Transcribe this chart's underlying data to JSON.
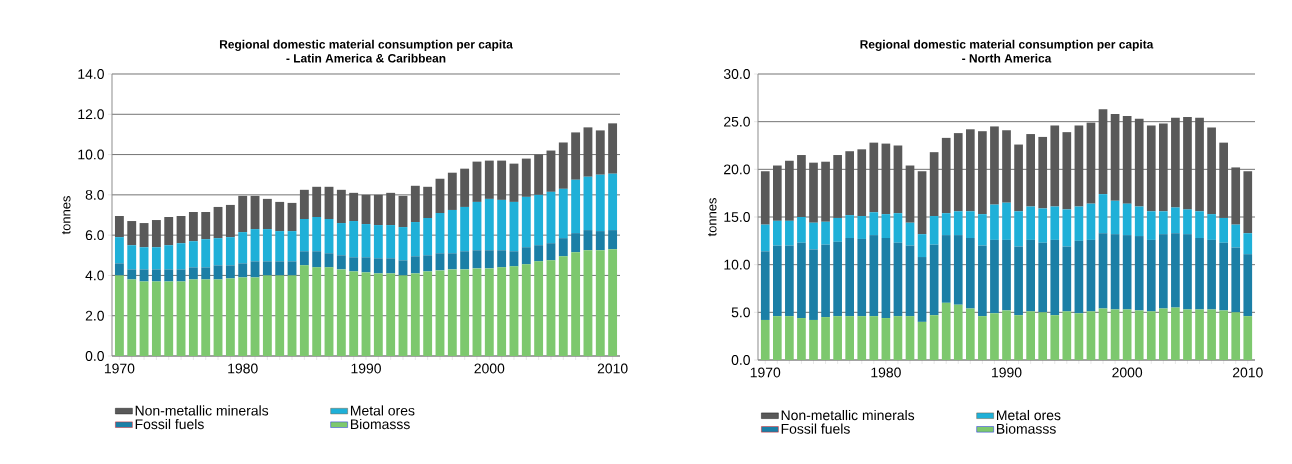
{
  "chart_data": [
    {
      "type": "bar",
      "stacked": true,
      "title": "Regional domestic material consumption per capita",
      "subtitle": "- Latin America & Caribbean",
      "ylabel": "tonnes",
      "x": [
        1970,
        1971,
        1972,
        1973,
        1974,
        1975,
        1976,
        1977,
        1978,
        1979,
        1980,
        1981,
        1982,
        1983,
        1984,
        1985,
        1986,
        1987,
        1988,
        1989,
        1990,
        1991,
        1992,
        1993,
        1994,
        1995,
        1996,
        1997,
        1998,
        1999,
        2000,
        2001,
        2002,
        2003,
        2004,
        2005,
        2006,
        2007,
        2008,
        2009,
        2010
      ],
      "xlim": [
        1969.4,
        2010.6
      ],
      "xticks": [
        1970,
        1980,
        1990,
        2000,
        2010
      ],
      "ylim": [
        0,
        14
      ],
      "yticks": [
        {
          "value": 0,
          "label": "0.0"
        },
        {
          "value": 2,
          "label": "2.0"
        },
        {
          "value": 4,
          "label": "4.0"
        },
        {
          "value": 6,
          "label": "6.0"
        },
        {
          "value": 8,
          "label": "8.0"
        },
        {
          "value": 10,
          "label": "10.0"
        },
        {
          "value": 12,
          "label": "12.0"
        },
        {
          "value": 14,
          "label": "14.0"
        }
      ],
      "grid": "y",
      "legend": "bottom",
      "series": [
        {
          "name": "Biomasss",
          "color": "#7dc86e",
          "values": [
            4.0,
            3.8,
            3.7,
            3.7,
            3.7,
            3.7,
            3.8,
            3.8,
            3.8,
            3.85,
            3.9,
            3.9,
            4.0,
            4.0,
            4.0,
            4.5,
            4.4,
            4.4,
            4.3,
            4.2,
            4.15,
            4.1,
            4.1,
            4.0,
            4.1,
            4.2,
            4.25,
            4.3,
            4.3,
            4.35,
            4.35,
            4.4,
            4.45,
            4.55,
            4.7,
            4.75,
            4.95,
            5.15,
            5.25,
            5.25,
            5.3
          ]
        },
        {
          "name": "Fossil fuels",
          "color": "#1b7fa6",
          "values": [
            0.6,
            0.5,
            0.6,
            0.6,
            0.6,
            0.6,
            0.6,
            0.6,
            0.7,
            0.65,
            0.7,
            0.8,
            0.7,
            0.7,
            0.7,
            0.7,
            0.8,
            0.7,
            0.7,
            0.7,
            0.75,
            0.75,
            0.75,
            0.75,
            0.85,
            0.8,
            0.85,
            0.8,
            0.9,
            0.9,
            0.9,
            0.85,
            0.75,
            0.85,
            0.8,
            0.85,
            0.9,
            0.95,
            1.0,
            0.95,
            0.95
          ]
        },
        {
          "name": "Metal ores",
          "color": "#1fb0d8",
          "values": [
            1.3,
            1.2,
            1.1,
            1.1,
            1.2,
            1.3,
            1.3,
            1.4,
            1.35,
            1.4,
            1.55,
            1.6,
            1.6,
            1.5,
            1.5,
            1.6,
            1.7,
            1.7,
            1.6,
            1.8,
            1.65,
            1.65,
            1.65,
            1.65,
            1.7,
            1.85,
            2.0,
            2.15,
            2.2,
            2.4,
            2.55,
            2.5,
            2.45,
            2.5,
            2.5,
            2.55,
            2.45,
            2.65,
            2.65,
            2.8,
            2.8
          ]
        },
        {
          "name": "Non-metallic minerals",
          "color": "#595959",
          "values": [
            1.05,
            1.2,
            1.2,
            1.35,
            1.4,
            1.35,
            1.45,
            1.35,
            1.55,
            1.6,
            1.8,
            1.65,
            1.5,
            1.45,
            1.4,
            1.45,
            1.5,
            1.6,
            1.65,
            1.4,
            1.45,
            1.5,
            1.6,
            1.55,
            1.8,
            1.55,
            1.7,
            1.85,
            1.9,
            2.0,
            1.9,
            1.95,
            1.9,
            1.9,
            2.0,
            2.05,
            2.3,
            2.35,
            2.45,
            2.2,
            2.5
          ]
        }
      ]
    },
    {
      "type": "bar",
      "stacked": true,
      "title": "Regional domestic material consumption per capita",
      "subtitle": "- North America",
      "ylabel": "tonnes",
      "x": [
        1970,
        1971,
        1972,
        1973,
        1974,
        1975,
        1976,
        1977,
        1978,
        1979,
        1980,
        1981,
        1982,
        1983,
        1984,
        1985,
        1986,
        1987,
        1988,
        1989,
        1990,
        1991,
        1992,
        1993,
        1994,
        1995,
        1996,
        1997,
        1998,
        1999,
        2000,
        2001,
        2002,
        2003,
        2004,
        2005,
        2006,
        2007,
        2008,
        2009,
        2010
      ],
      "xlim": [
        1969.4,
        2010.6
      ],
      "xticks": [
        1970,
        1980,
        1990,
        2000,
        2010
      ],
      "ylim": [
        0,
        30
      ],
      "yticks": [
        {
          "value": 0,
          "label": "0.0"
        },
        {
          "value": 5,
          "label": "5.0"
        },
        {
          "value": 10,
          "label": "10.0"
        },
        {
          "value": 15,
          "label": "15.0"
        },
        {
          "value": 20,
          "label": "20.0"
        },
        {
          "value": 25,
          "label": "25.0"
        },
        {
          "value": 30,
          "label": "30.0"
        }
      ],
      "grid": "y",
      "legend": "bottom",
      "series": [
        {
          "name": "Biomasss",
          "color": "#7dc86e",
          "values": [
            4.2,
            4.6,
            4.6,
            4.4,
            4.2,
            4.5,
            4.6,
            4.6,
            4.6,
            4.6,
            4.4,
            4.6,
            4.6,
            4.0,
            4.7,
            6.0,
            5.8,
            5.4,
            4.6,
            4.9,
            5.2,
            4.7,
            5.1,
            5.0,
            4.7,
            5.1,
            4.9,
            5.1,
            5.4,
            5.3,
            5.3,
            5.2,
            5.1,
            5.4,
            5.5,
            5.3,
            5.3,
            5.3,
            5.2,
            5.0,
            4.6
          ]
        },
        {
          "name": "Fossil fuels",
          "color": "#1b7fa6",
          "values": [
            7.2,
            7.4,
            7.4,
            7.9,
            7.4,
            7.6,
            7.8,
            8.2,
            8.1,
            8.5,
            8.4,
            7.7,
            7.4,
            6.8,
            7.4,
            7.1,
            7.3,
            7.4,
            7.4,
            7.7,
            7.4,
            7.2,
            7.5,
            7.3,
            7.9,
            6.8,
            7.6,
            7.5,
            7.9,
            7.9,
            7.8,
            7.8,
            7.5,
            7.8,
            7.8,
            7.9,
            7.5,
            7.3,
            7.1,
            6.8,
            6.5
          ]
        },
        {
          "name": "Metal ores",
          "color": "#1fb0d8",
          "values": [
            2.8,
            2.6,
            2.6,
            2.7,
            2.8,
            2.4,
            2.5,
            2.4,
            2.4,
            2.4,
            2.5,
            3.1,
            2.4,
            2.4,
            3.0,
            2.3,
            2.5,
            2.8,
            3.3,
            3.7,
            3.9,
            3.7,
            3.5,
            3.6,
            3.5,
            3.9,
            3.6,
            3.8,
            4.1,
            3.5,
            3.3,
            3.1,
            3.0,
            2.4,
            2.7,
            2.6,
            2.8,
            2.7,
            2.6,
            2.4,
            2.2
          ]
        },
        {
          "name": "Non-metallic minerals",
          "color": "#595959",
          "values": [
            5.6,
            5.8,
            6.3,
            6.5,
            6.3,
            6.3,
            6.6,
            6.7,
            7.0,
            7.3,
            7.4,
            7.1,
            6.0,
            6.6,
            6.7,
            7.9,
            8.2,
            8.6,
            8.7,
            8.2,
            7.6,
            7.0,
            7.6,
            7.5,
            8.5,
            8.1,
            8.5,
            8.5,
            8.9,
            9.1,
            9.2,
            9.2,
            9.0,
            9.2,
            9.4,
            9.7,
            9.8,
            9.1,
            7.9,
            6.0,
            6.5
          ]
        }
      ]
    }
  ]
}
